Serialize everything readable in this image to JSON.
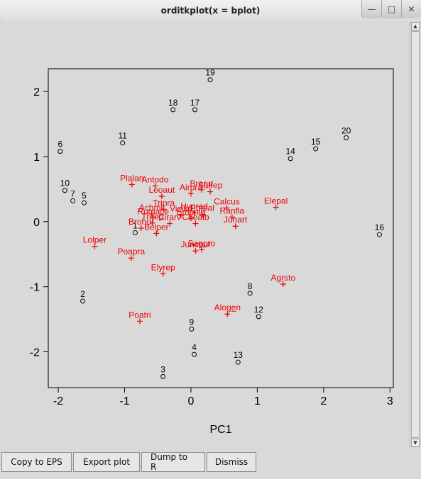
{
  "window": {
    "title": "orditkplot(x = bplot)"
  },
  "window_controls": {
    "minimize": "—",
    "maximize": "□",
    "close": "✕"
  },
  "scrollbar": {
    "up": "▲",
    "down": "▼"
  },
  "buttons": {
    "copy_eps": "Copy to EPS",
    "export_plot": "Export plot",
    "dump_r": "Dump to R",
    "dismiss": "Dismiss"
  },
  "chart_data": {
    "type": "scatter",
    "xlabel": "PC1",
    "xlim": [
      -2.15,
      3.05
    ],
    "ylim": [
      -2.55,
      2.35
    ],
    "xticks": [
      -2,
      -1,
      0,
      1,
      2,
      3
    ],
    "yticks": [
      -2,
      -1,
      0,
      1,
      2
    ],
    "colors": {
      "sites": "#000000",
      "species": "#ee0000"
    },
    "sites": [
      {
        "label": "1",
        "x": -0.84,
        "y": -0.17
      },
      {
        "label": "2",
        "x": -1.63,
        "y": -1.22
      },
      {
        "label": "3",
        "x": -0.42,
        "y": -2.38
      },
      {
        "label": "4",
        "x": 0.05,
        "y": -2.04
      },
      {
        "label": "5",
        "x": -1.61,
        "y": 0.29
      },
      {
        "label": "6",
        "x": -1.97,
        "y": 1.08
      },
      {
        "label": "7",
        "x": -1.78,
        "y": 0.32
      },
      {
        "label": "8",
        "x": 0.89,
        "y": -1.1
      },
      {
        "label": "9",
        "x": 0.01,
        "y": -1.65
      },
      {
        "label": "10",
        "x": -1.9,
        "y": 0.48
      },
      {
        "label": "11",
        "x": -1.03,
        "y": 1.21
      },
      {
        "label": "12",
        "x": 1.02,
        "y": -1.46
      },
      {
        "label": "13",
        "x": 0.71,
        "y": -2.16
      },
      {
        "label": "14",
        "x": 1.5,
        "y": 0.97
      },
      {
        "label": "15",
        "x": 1.88,
        "y": 1.12
      },
      {
        "label": "16",
        "x": 2.84,
        "y": -0.2
      },
      {
        "label": "17",
        "x": 0.06,
        "y": 1.72
      },
      {
        "label": "18",
        "x": -0.27,
        "y": 1.72
      },
      {
        "label": "19",
        "x": 0.29,
        "y": 2.18
      },
      {
        "label": "20",
        "x": 2.34,
        "y": 1.29
      }
    ],
    "species": [
      {
        "label": "Achmil",
        "x": -0.59,
        "y": 0.12
      },
      {
        "label": "Agrsto",
        "x": 1.39,
        "y": -0.96
      },
      {
        "label": "Aloge̲n",
        "x": 0.55,
        "y": -1.42
      },
      {
        "label": "Antodo",
        "x": -0.54,
        "y": 0.55
      },
      {
        "label": "Belper",
        "x": -0.52,
        "y": -0.18
      },
      {
        "label": "Brarut",
        "x": 0.16,
        "y": 0.49
      },
      {
        "label": "Brohor",
        "x": -0.75,
        "y": -0.1
      },
      {
        "label": "Calcus",
        "x": 0.54,
        "y": 0.21
      },
      {
        "label": "Chealb",
        "x": 0.07,
        "y": -0.03
      },
      {
        "label": "Cirarv",
        "x": -0.32,
        "y": -0.03
      },
      {
        "label": "Elepal",
        "x": 1.28,
        "y": 0.22
      },
      {
        "label": "Elyrep",
        "x": -0.42,
        "y": -0.8
      },
      {
        "label": "Empnig",
        "x": 0.0,
        "y": 0.05
      },
      {
        "label": "Hyprad",
        "x": 0.05,
        "y": 0.14
      },
      {
        "label": "Juncbuf",
        "x": 0.07,
        "y": -0.45
      },
      {
        "label": "Junart",
        "x": 0.67,
        "y": -0.07
      },
      {
        "label": "Leoaut",
        "x": -0.44,
        "y": 0.39
      },
      {
        "label": "Lolper",
        "x": -1.45,
        "y": -0.38
      },
      {
        "label": "Plalan",
        "x": -0.89,
        "y": 0.57
      },
      {
        "label": "Poapra",
        "x": -0.9,
        "y": -0.56
      },
      {
        "label": "Poatri",
        "x": -0.77,
        "y": -1.53
      },
      {
        "label": "Potpal",
        "x": 0.17,
        "y": 0.11
      },
      {
        "label": "Ranfla",
        "x": 0.62,
        "y": 0.07
      },
      {
        "label": "Rumace",
        "x": -0.57,
        "y": 0.06
      },
      {
        "label": "Sagpro",
        "x": 0.16,
        "y": -0.43
      },
      {
        "label": "Salrep",
        "x": 0.29,
        "y": 0.46
      },
      {
        "label": "Trirep",
        "x": -0.58,
        "y": -0.02
      },
      {
        "label": "Tripra",
        "x": -0.41,
        "y": 0.19
      },
      {
        "label": "Vicilat",
        "x": -0.15,
        "y": 0.1
      },
      {
        "label": "Airpra",
        "x": 0.0,
        "y": 0.43
      }
    ]
  }
}
